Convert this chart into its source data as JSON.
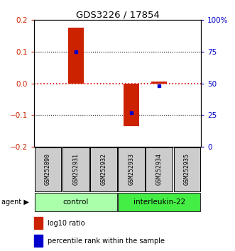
{
  "title": "GDS3226 / 17854",
  "samples": [
    "GSM252890",
    "GSM252931",
    "GSM252932",
    "GSM252933",
    "GSM252934",
    "GSM252935"
  ],
  "log10_ratio": [
    0.0,
    0.175,
    0.0,
    -0.135,
    0.005,
    0.0
  ],
  "percentile_rank": [
    50,
    75,
    50,
    27,
    48,
    50
  ],
  "show_dot": [
    false,
    true,
    false,
    true,
    true,
    false
  ],
  "groups": [
    {
      "label": "control",
      "indices": [
        0,
        1,
        2
      ],
      "color": "#aaffaa"
    },
    {
      "label": "interleukin-22",
      "indices": [
        3,
        4,
        5
      ],
      "color": "#44ee44"
    }
  ],
  "bar_color": "#cc2200",
  "dot_color": "#0000cc",
  "ylim_left": [
    -0.2,
    0.2
  ],
  "ylim_right": [
    0,
    100
  ],
  "yticks_left": [
    -0.2,
    -0.1,
    0.0,
    0.1,
    0.2
  ],
  "yticks_right": [
    0,
    25,
    50,
    75,
    100
  ],
  "hline0_color": "#dd0000",
  "hline_color": "#000000",
  "label_bg": "#cccccc",
  "light_green": "#aaffaa",
  "dark_green": "#44ee44"
}
